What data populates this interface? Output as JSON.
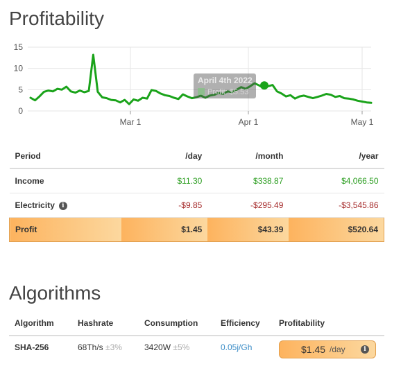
{
  "profitability": {
    "title": "Profitability",
    "chart_data": {
      "type": "line",
      "title": "",
      "xlabel": "",
      "ylabel": "",
      "y_ticks": [
        "15",
        "10",
        "5",
        "0"
      ],
      "x_ticks": [
        "Mar 1",
        "Apr 1",
        "May 1"
      ],
      "ylim": [
        0,
        15
      ],
      "grid": true,
      "series_color": "#1aa31a",
      "series": [
        {
          "values": [
            3.1,
            2.5,
            3.4,
            4.5,
            4.8,
            4.6,
            5.2,
            5.0,
            5.7,
            4.6,
            4.3,
            4.8,
            4.4,
            4.7,
            13.2,
            4.5,
            3.2,
            3.0,
            2.6,
            2.5,
            2.0,
            2.6,
            1.6,
            2.7,
            2.4,
            3.1,
            2.9,
            4.9,
            4.7,
            4.1,
            3.7,
            3.5,
            3.1,
            2.8,
            3.9,
            3.4,
            3.0,
            3.2,
            3.6,
            3.1,
            3.6,
            3.8,
            4.2,
            4.0,
            4.6,
            4.4,
            5.0,
            5.6,
            5.2,
            5.8,
            6.5,
            6.0,
            5.4,
            5.8,
            6.1,
            4.6,
            4.1,
            3.4,
            3.7,
            2.9,
            3.4,
            3.6,
            3.3,
            3.0,
            3.3,
            3.6,
            4.0,
            3.8,
            3.3,
            3.5,
            3.0,
            2.9,
            2.7,
            2.4,
            2.2,
            2.0,
            1.9
          ]
        }
      ],
      "highlight": {
        "value": 6.0
      },
      "tooltip": {
        "title": "April 4th 2022",
        "text": "Profit: $5.53"
      }
    }
  },
  "summary_table": {
    "headers": {
      "period": "Period",
      "day": "/day",
      "month": "/month",
      "year": "/year"
    },
    "income": {
      "label": "Income",
      "day": "$11.30",
      "month": "$338.87",
      "year": "$4,066.50"
    },
    "electricity": {
      "label": "Electricity",
      "day": "-$9.85",
      "month": "-$295.49",
      "year": "-$3,545.86"
    },
    "profit": {
      "label": "Profit",
      "day": "$1.45",
      "month": "$43.39",
      "year": "$520.64"
    },
    "colors": {
      "positive": "#2a9d1f",
      "negative": "#a52a2a",
      "profit_row": "#fdb35e"
    }
  },
  "algorithms": {
    "title": "Algorithms",
    "headers": {
      "algorithm": "Algorithm",
      "hashrate": "Hashrate",
      "consumption": "Consumption",
      "efficiency": "Efficiency",
      "profitability": "Profitability"
    },
    "rows": [
      {
        "algorithm": "SHA-256",
        "hashrate": "68Th/s",
        "hashrate_tol": "±3%",
        "consumption": "3420W",
        "consumption_tol": "±5%",
        "efficiency": "0.05j/Gh",
        "profit_amount": "$1.45",
        "profit_unit": "/day"
      }
    ]
  }
}
